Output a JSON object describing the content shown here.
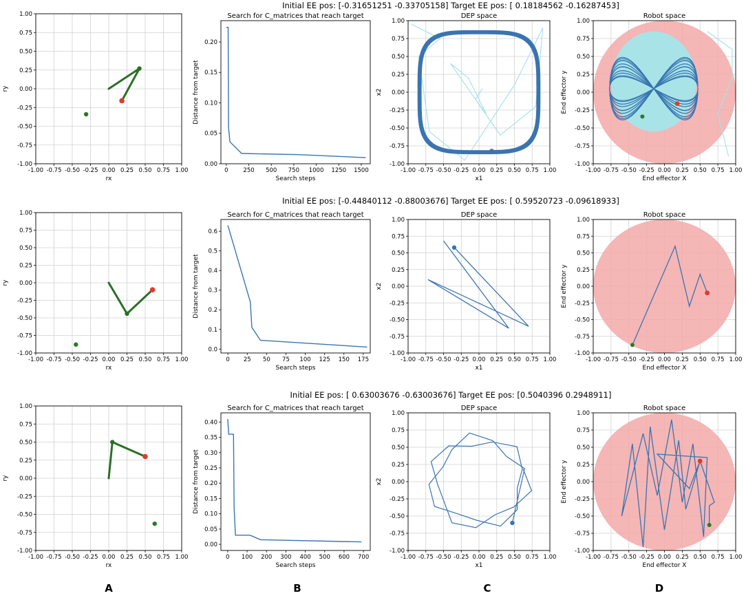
{
  "figure": {
    "panel_letters": [
      "A",
      "B",
      "C",
      "D"
    ]
  },
  "colors": {
    "arm": "#2a6f25",
    "traj": "#3a74b0",
    "traj_light": "#a8e3e8",
    "robot_space": "#f3a9a9",
    "target": "#e23a2c",
    "start": "#2a7a28",
    "grid": "#d0d0d0"
  },
  "chart_data": [
    {
      "row": 0,
      "suptitle": {
        "initial": "Initial EE pos: [-0.31651251 -0.33705158]",
        "target": "Target EE pos: [ 0.18184562 -0.16287453]"
      },
      "arm": {
        "type": "line",
        "xlabel": "rx",
        "ylabel": "ry",
        "xlim": [
          -1,
          1
        ],
        "ylim": [
          -1,
          1
        ],
        "ticks": [
          "-1.00",
          "-0.75",
          "-0.50",
          "-0.25",
          "0.00",
          "0.25",
          "0.50",
          "0.75",
          "1.00"
        ],
        "points": [
          [
            0,
            0
          ],
          [
            0.42,
            0.27
          ],
          [
            0.18,
            -0.16
          ]
        ],
        "target": [
          0.18,
          -0.16
        ],
        "start": [
          -0.31,
          -0.34
        ]
      },
      "search": {
        "type": "line",
        "title": "Search for C_matrices that reach target",
        "xlabel": "Search steps",
        "ylabel": "Distance from target",
        "xlim": [
          -60,
          1600
        ],
        "ylim": [
          0,
          0.235
        ],
        "xticks": [
          0,
          250,
          500,
          750,
          1000,
          1250,
          1500
        ],
        "yticks": [
          0.0,
          0.05,
          0.1,
          0.15,
          0.2
        ],
        "ytick_labels": [
          "0.00",
          "0.05",
          "0.10",
          "0.15",
          "0.20"
        ],
        "points": [
          [
            0,
            0.224
          ],
          [
            20,
            0.224
          ],
          [
            25,
            0.06
          ],
          [
            40,
            0.036
          ],
          [
            170,
            0.017
          ],
          [
            800,
            0.015
          ],
          [
            1550,
            0.01
          ]
        ]
      },
      "dep": {
        "type": "line",
        "title": "DEP space",
        "xlabel": "x1",
        "ylabel": "x2",
        "xlim": [
          -1,
          1
        ],
        "ylim": [
          -1,
          1
        ],
        "ticks": [
          "-1.00",
          "-0.75",
          "-0.50",
          "-0.25",
          "0.00",
          "0.25",
          "0.50",
          "0.75",
          "1.00"
        ],
        "loop": [
          0.82,
          4
        ],
        "light": [
          [
            -0.95,
            0.95
          ],
          [
            -0.55,
            0.75
          ],
          [
            -0.85,
            0.5
          ],
          [
            -0.7,
            -0.55
          ],
          [
            -0.2,
            -0.95
          ],
          [
            0.5,
            0.1
          ],
          [
            0.9,
            0.9
          ],
          [
            0.8,
            -0.2
          ],
          [
            0.3,
            -0.6
          ],
          [
            -0.4,
            0.4
          ],
          [
            -0.15,
            0.2
          ],
          [
            0.1,
            -0.3
          ],
          [
            -0.05,
            -0.1
          ],
          [
            0.05,
            0.05
          ]
        ],
        "marker": [
          0.18,
          -0.82
        ]
      },
      "robot": {
        "type": "line",
        "title": "Robot space",
        "xlabel": "End effector X",
        "ylabel": "End effector y",
        "xlim": [
          -1,
          1
        ],
        "ylim": [
          -1,
          1
        ],
        "ticks": [
          "-1.00",
          "-0.75",
          "-0.50",
          "-0.25",
          "0.00",
          "0.25",
          "0.50",
          "0.75",
          "1.00"
        ],
        "start": [
          -0.31,
          -0.34
        ],
        "target": [
          0.18,
          -0.16
        ],
        "pattern": "figure-eight"
      }
    },
    {
      "row": 1,
      "suptitle": {
        "initial": "Initial EE pos: [-0.44840112 -0.88003676]",
        "target": "Target EE pos: [ 0.59520723 -0.09618933]"
      },
      "arm": {
        "type": "line",
        "xlabel": "rx",
        "ylabel": "ry",
        "xlim": [
          -1,
          1
        ],
        "ylim": [
          -1,
          1
        ],
        "ticks": [
          "-1.00",
          "-0.75",
          "-0.50",
          "-0.25",
          "0.00",
          "0.25",
          "0.50",
          "0.75",
          "1.00"
        ],
        "points": [
          [
            0,
            0
          ],
          [
            0.25,
            -0.44
          ],
          [
            0.6,
            -0.1
          ]
        ],
        "target": [
          0.6,
          -0.1
        ],
        "start": [
          -0.45,
          -0.88
        ]
      },
      "search": {
        "type": "line",
        "title": "Search for C_matrices that reach target",
        "xlabel": "Search steps",
        "ylabel": "Distance from target",
        "xlim": [
          -9,
          184
        ],
        "ylim": [
          -0.02,
          0.66
        ],
        "xticks": [
          0,
          25,
          50,
          75,
          100,
          125,
          150,
          175
        ],
        "yticks": [
          0.0,
          0.1,
          0.2,
          0.3,
          0.4,
          0.5,
          0.6
        ],
        "ytick_labels": [
          "0.0",
          "0.1",
          "0.2",
          "0.3",
          "0.4",
          "0.5",
          "0.6"
        ],
        "points": [
          [
            0,
            0.63
          ],
          [
            29,
            0.24
          ],
          [
            31,
            0.11
          ],
          [
            42,
            0.045
          ],
          [
            100,
            0.03
          ],
          [
            180,
            0.01
          ]
        ]
      },
      "dep": {
        "type": "line",
        "title": "DEP space",
        "xlabel": "x1",
        "ylabel": "x2",
        "xlim": [
          -1,
          1
        ],
        "ylim": [
          -1,
          1
        ],
        "ticks": [
          "-1.00",
          "-0.75",
          "-0.50",
          "-0.25",
          "0.00",
          "0.25",
          "0.50",
          "0.75",
          "1.00"
        ],
        "points": [
          [
            -0.35,
            0.58
          ],
          [
            0.7,
            -0.6
          ],
          [
            -0.72,
            0.1
          ],
          [
            0.42,
            -0.63
          ],
          [
            -0.5,
            0.68
          ]
        ],
        "marker": [
          -0.35,
          0.58
        ]
      },
      "robot": {
        "type": "line",
        "title": "Robot space",
        "xlabel": "End effector X",
        "ylabel": "End effector y",
        "xlim": [
          -1,
          1
        ],
        "ylim": [
          -1,
          1
        ],
        "ticks": [
          "-1.00",
          "-0.75",
          "-0.50",
          "-0.25",
          "0.00",
          "0.25",
          "0.50",
          "0.75",
          "1.00"
        ],
        "points": [
          [
            -0.45,
            -0.88
          ],
          [
            0.15,
            0.6
          ],
          [
            0.35,
            -0.3
          ],
          [
            0.5,
            0.18
          ],
          [
            0.6,
            -0.1
          ]
        ],
        "start": [
          -0.45,
          -0.88
        ],
        "target": [
          0.6,
          -0.1
        ]
      }
    },
    {
      "row": 2,
      "suptitle": {
        "initial": "Initial EE pos: [ 0.63003676 -0.63003676]",
        "target": "Target EE pos: [0.5040396 0.2948911]"
      },
      "arm": {
        "type": "line",
        "xlabel": "rx",
        "ylabel": "ry",
        "xlim": [
          -1,
          1
        ],
        "ylim": [
          -1,
          1
        ],
        "ticks": [
          "-1.00",
          "-0.75",
          "-0.50",
          "-0.25",
          "0.00",
          "0.25",
          "0.50",
          "0.75",
          "1.00"
        ],
        "points": [
          [
            0,
            0
          ],
          [
            0.05,
            0.5
          ],
          [
            0.5,
            0.3
          ]
        ],
        "target": [
          0.5,
          0.3
        ],
        "start": [
          0.63,
          -0.63
        ]
      },
      "search": {
        "type": "line",
        "title": "Search for C_matrices that reach target",
        "xlabel": "Search steps",
        "ylabel": "Distance from target",
        "xlim": [
          -35,
          735
        ],
        "ylim": [
          -0.02,
          0.43
        ],
        "xticks": [
          0,
          100,
          200,
          300,
          400,
          500,
          600,
          700
        ],
        "yticks": [
          0.0,
          0.05,
          0.1,
          0.15,
          0.2,
          0.25,
          0.3,
          0.35,
          0.4
        ],
        "ytick_labels": [
          "0.00",
          "0.05",
          "0.10",
          "0.15",
          "0.20",
          "0.25",
          "0.30",
          "0.35",
          "0.40"
        ],
        "points": [
          [
            0,
            0.41
          ],
          [
            5,
            0.36
          ],
          [
            30,
            0.36
          ],
          [
            33,
            0.12
          ],
          [
            40,
            0.03
          ],
          [
            115,
            0.03
          ],
          [
            170,
            0.015
          ],
          [
            690,
            0.008
          ]
        ]
      },
      "dep": {
        "type": "line",
        "title": "DEP space",
        "xlabel": "x1",
        "ylabel": "x2",
        "xlim": [
          -1,
          1
        ],
        "ylim": [
          -1,
          1
        ],
        "ticks": [
          "-1.00",
          "-0.75",
          "-0.50",
          "-0.25",
          "0.00",
          "0.25",
          "0.50",
          "0.75",
          "1.00"
        ],
        "pattern": "star",
        "marker": [
          0.47,
          -0.6
        ]
      },
      "robot": {
        "type": "line",
        "title": "Robot space",
        "xlabel": "End effector X",
        "ylabel": "End effector y",
        "xlim": [
          -1,
          1
        ],
        "ylim": [
          -1,
          1
        ],
        "ticks": [
          "-1.00",
          "-0.75",
          "-0.50",
          "-0.25",
          "0.00",
          "0.25",
          "0.50",
          "0.75",
          "1.00"
        ],
        "points": [
          [
            0.63,
            -0.63
          ],
          [
            0.63,
            -0.35
          ],
          [
            0.7,
            -0.3
          ],
          [
            0.5,
            0.3
          ],
          [
            0.3,
            -0.4
          ],
          [
            0.2,
            0.6
          ],
          [
            0,
            -0.7
          ],
          [
            -0.2,
            0.8
          ],
          [
            -0.3,
            -0.95
          ],
          [
            -0.45,
            0.55
          ],
          [
            -0.6,
            -0.5
          ],
          [
            -0.3,
            0.7
          ],
          [
            -0.1,
            -0.2
          ],
          [
            0.1,
            0.9
          ],
          [
            0.25,
            -0.3
          ],
          [
            0.4,
            0.55
          ],
          [
            0.55,
            -0.8
          ],
          [
            0.6,
            0.35
          ],
          [
            -0.1,
            0.4
          ],
          [
            0.35,
            -0.1
          ],
          [
            0.5,
            0.3
          ]
        ],
        "start": [
          0.63,
          -0.63
        ],
        "target": [
          0.5,
          0.3
        ]
      }
    }
  ]
}
